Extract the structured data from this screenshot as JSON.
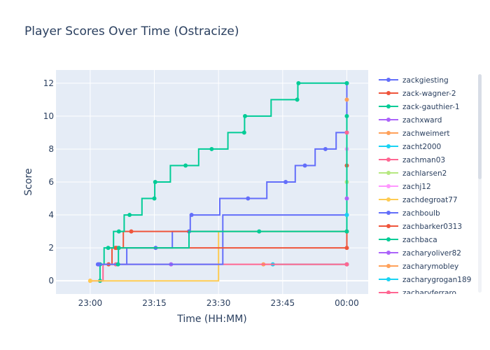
{
  "chart_data": {
    "type": "line",
    "line_shape": "step",
    "title": "Player Scores Over Time (Ostracize)",
    "xlabel": "Time (HH:MM)",
    "ylabel": "Score",
    "x_unit": "minutes after 23:00",
    "xlim": [
      -8,
      65
    ],
    "ylim": [
      -0.8,
      12.8
    ],
    "x_ticks": [
      {
        "value": 0,
        "label": "23:00"
      },
      {
        "value": 15,
        "label": "23:15"
      },
      {
        "value": 30,
        "label": "23:30"
      },
      {
        "value": 45,
        "label": "23:45"
      },
      {
        "value": 60,
        "label": "00:00"
      }
    ],
    "y_ticks": [
      0,
      2,
      4,
      6,
      8,
      10,
      12
    ],
    "grid": true,
    "legend_position": "right",
    "series": [
      {
        "name": "zackgiesting",
        "color": "#636efa",
        "points": [
          [
            1.8,
            1
          ],
          [
            15.3,
            2
          ],
          [
            23.1,
            3
          ],
          [
            23.7,
            4
          ],
          [
            36.9,
            5
          ],
          [
            45.7,
            6
          ],
          [
            50.2,
            7
          ],
          [
            55,
            8
          ],
          [
            60,
            9
          ],
          [
            60,
            12
          ]
        ]
      },
      {
        "name": "zack-wagner-2",
        "color": "#EF553B",
        "points": [
          [
            4.3,
            1
          ],
          [
            5.9,
            2
          ],
          [
            9.6,
            3
          ],
          [
            60,
            3
          ]
        ]
      },
      {
        "name": "zack-gauthier-1",
        "color": "#00cc96",
        "points": [
          [
            2.3,
            0
          ],
          [
            2.3,
            1
          ],
          [
            4.2,
            2
          ],
          [
            6.7,
            3
          ],
          [
            9.2,
            4
          ],
          [
            15,
            5
          ],
          [
            15.2,
            6
          ],
          [
            22.3,
            7
          ],
          [
            28.4,
            8
          ],
          [
            36,
            9
          ],
          [
            36.2,
            10
          ],
          [
            48.4,
            11
          ],
          [
            48.7,
            12
          ],
          [
            60,
            12
          ]
        ]
      },
      {
        "name": "zachxward",
        "color": "#ab63fa",
        "points": [
          [
            18.9,
            1
          ]
        ]
      },
      {
        "name": "zachweimert",
        "color": "#FFA15A",
        "points": [
          [
            40.5,
            1
          ],
          [
            60,
            1
          ]
        ]
      },
      {
        "name": "zacht2000",
        "color": "#19d3f3",
        "points": [
          [
            42.7,
            1
          ],
          [
            60,
            1
          ]
        ]
      },
      {
        "name": "zachman03",
        "color": "#FF6692",
        "points": [
          [
            0,
            0
          ],
          [
            6,
            1
          ],
          [
            60,
            1
          ]
        ]
      },
      {
        "name": "zachlarsen2",
        "color": "#B6E880",
        "points": [
          [
            60,
            6
          ]
        ]
      },
      {
        "name": "zachj12",
        "color": "#FF97FF",
        "points": [
          [
            60,
            8
          ]
        ]
      },
      {
        "name": "zachdegroat77",
        "color": "#FECB52",
        "points": [
          [
            0,
            0
          ],
          [
            60,
            3
          ]
        ]
      },
      {
        "name": "zachboulb",
        "color": "#636efa",
        "points": [
          [
            2,
            1
          ],
          [
            60,
            4
          ]
        ]
      },
      {
        "name": "zachbarker0313",
        "color": "#EF553B",
        "points": [
          [
            6.2,
            2
          ],
          [
            60,
            2
          ],
          [
            60,
            7
          ]
        ]
      },
      {
        "name": "zachbaca",
        "color": "#00cc96",
        "points": [
          [
            6.5,
            1
          ],
          [
            6.7,
            2
          ],
          [
            39.5,
            3
          ],
          [
            60,
            3
          ],
          [
            60,
            10
          ]
        ]
      },
      {
        "name": "zacharyoliver82",
        "color": "#ab63fa",
        "points": [
          [
            60,
            5
          ]
        ]
      },
      {
        "name": "zacharymobley",
        "color": "#FFA15A",
        "points": [
          [
            60,
            11
          ]
        ]
      },
      {
        "name": "zacharygrogan189",
        "color": "#19d3f3",
        "points": [
          [
            60,
            4
          ]
        ]
      },
      {
        "name": "zacharyferraro",
        "color": "#FF6692",
        "points": [
          [
            60,
            9
          ]
        ]
      }
    ]
  }
}
